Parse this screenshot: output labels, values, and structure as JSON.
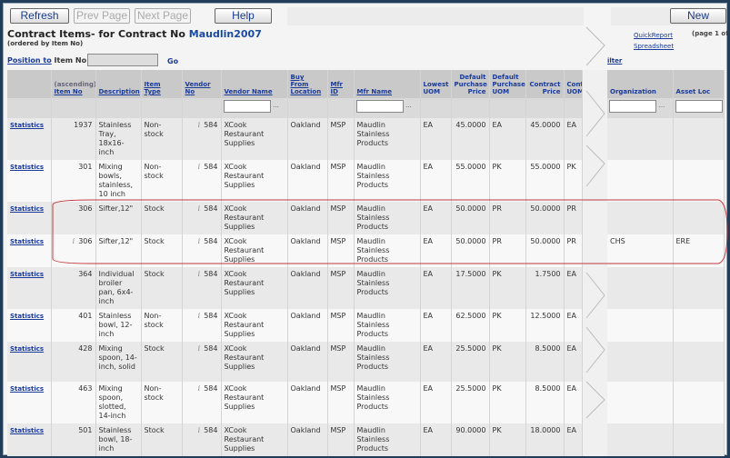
{
  "toolbar": {
    "refresh": "Refresh",
    "prev": "Prev Page",
    "next": "Next Page",
    "help": "Help",
    "new": "New"
  },
  "header": {
    "title": "Contract Items- for Contract No",
    "contract_no": "Maudlin2007",
    "subtitle": "(ordered by Item No)",
    "quick_report": "QuickReport",
    "spreadsheet": "Spreadsheet",
    "page_info": "(page 1 of",
    "filter_link": "ilter"
  },
  "position": {
    "link": "Position to",
    "label": "Item No",
    "value": "",
    "go": "Go"
  },
  "columns": {
    "sort_note": "(ascending)",
    "item_no": "Item No",
    "description": "Description",
    "item_type": "Item Type",
    "vendor_no": "Vendor No",
    "vendor_name": "Vendor Name",
    "buy_from": "Buy From Location",
    "mfr_id": "Mfr ID",
    "mfr_name": "Mfr Name",
    "lowest_uom": "Lowest UOM",
    "def_price": "Default Purchase Price",
    "def_uom": "Default Purchase UOM",
    "contract_price": "Contract Price",
    "cont_uom": "Cont UOM",
    "organization": "Organization",
    "asset_loc": "Asset Loc"
  },
  "filter_button": "...",
  "rows": [
    {
      "link": "Statistics",
      "item_no": "1937",
      "info": false,
      "description": "Stainless Tray, 18x16-inch",
      "item_type": "Non-stock",
      "vendor_no": "584",
      "vendor_name": "XCook Restaurant Supplies",
      "buy_from": "Oakland",
      "mfr_id": "MSP",
      "mfr_name": "Maudlin Stainless Products",
      "lowest_uom": "EA",
      "def_price": "45.0000",
      "def_uom": "EA",
      "contract_price": "45.0000",
      "cont_uom": "EA",
      "organization": "",
      "asset_loc": ""
    },
    {
      "link": "Statistics",
      "item_no": "301",
      "info": false,
      "description": "Mixing bowls, stainless, 10 inch",
      "item_type": "Non-stock",
      "vendor_no": "584",
      "vendor_name": "XCook Restaurant Supplies",
      "buy_from": "Oakland",
      "mfr_id": "MSP",
      "mfr_name": "Maudlin Stainless Products",
      "lowest_uom": "EA",
      "def_price": "55.0000",
      "def_uom": "PK",
      "contract_price": "55.0000",
      "cont_uom": "PK",
      "organization": "",
      "asset_loc": ""
    },
    {
      "link": "Statistics",
      "item_no": "306",
      "info": false,
      "description": "Sifter,12\"",
      "item_type": "Stock",
      "vendor_no": "584",
      "vendor_name": "XCook Restaurant Supplies",
      "buy_from": "Oakland",
      "mfr_id": "MSP",
      "mfr_name": "Maudlin Stainless Products",
      "lowest_uom": "EA",
      "def_price": "50.0000",
      "def_uom": "PR",
      "contract_price": "50.0000",
      "cont_uom": "PR",
      "organization": "",
      "asset_loc": ""
    },
    {
      "link": "Statistics",
      "item_no": "306",
      "info": true,
      "description": "Sifter,12\"",
      "item_type": "Stock",
      "vendor_no": "584",
      "vendor_name": "XCook Restaurant Supplies",
      "buy_from": "Oakland",
      "mfr_id": "MSP",
      "mfr_name": "Maudlin Stainless Products",
      "lowest_uom": "EA",
      "def_price": "50.0000",
      "def_uom": "PR",
      "contract_price": "50.0000",
      "cont_uom": "PR",
      "organization": "CHS",
      "asset_loc": "ERE"
    },
    {
      "link": "Statistics",
      "item_no": "364",
      "info": false,
      "description": "Individual broiler pan, 6x4-inch",
      "item_type": "Stock",
      "vendor_no": "584",
      "vendor_name": "XCook Restaurant Supplies",
      "buy_from": "Oakland",
      "mfr_id": "MSP",
      "mfr_name": "Maudlin Stainless Products",
      "lowest_uom": "EA",
      "def_price": "17.5000",
      "def_uom": "PK",
      "contract_price": "1.7500",
      "cont_uom": "EA",
      "organization": "",
      "asset_loc": ""
    },
    {
      "link": "Statistics",
      "item_no": "401",
      "info": false,
      "description": "Stainless bowl, 12-inch",
      "item_type": "Non-stock",
      "vendor_no": "584",
      "vendor_name": "XCook Restaurant Supplies",
      "buy_from": "Oakland",
      "mfr_id": "MSP",
      "mfr_name": "Maudlin Stainless Products",
      "lowest_uom": "EA",
      "def_price": "62.5000",
      "def_uom": "PK",
      "contract_price": "12.5000",
      "cont_uom": "EA",
      "organization": "",
      "asset_loc": ""
    },
    {
      "link": "Statistics",
      "item_no": "428",
      "info": false,
      "description": "Mixing spoon, 14-inch, solid",
      "item_type": "Stock",
      "vendor_no": "584",
      "vendor_name": "XCook Restaurant Supplies",
      "buy_from": "Oakland",
      "mfr_id": "MSP",
      "mfr_name": "Maudlin Stainless Products",
      "lowest_uom": "EA",
      "def_price": "25.5000",
      "def_uom": "PK",
      "contract_price": "8.5000",
      "cont_uom": "EA",
      "organization": "",
      "asset_loc": ""
    },
    {
      "link": "Statistics",
      "item_no": "463",
      "info": false,
      "description": "Mixing spoon, slotted, 14-inch",
      "item_type": "Non-stock",
      "vendor_no": "584",
      "vendor_name": "XCook Restaurant Supplies",
      "buy_from": "Oakland",
      "mfr_id": "MSP",
      "mfr_name": "Maudlin Stainless Products",
      "lowest_uom": "EA",
      "def_price": "25.5000",
      "def_uom": "PK",
      "contract_price": "8.5000",
      "cont_uom": "EA",
      "organization": "",
      "asset_loc": ""
    },
    {
      "link": "Statistics",
      "item_no": "501",
      "info": false,
      "description": "Stainless bowl, 18-inch",
      "item_type": "Stock",
      "vendor_no": "584",
      "vendor_name": "XCook Restaurant Supplies",
      "buy_from": "Oakland",
      "mfr_id": "MSP",
      "mfr_name": "Maudlin Stainless Products",
      "lowest_uom": "EA",
      "def_price": "90.0000",
      "def_uom": "PK",
      "contract_price": "18.0000",
      "cont_uom": "EA",
      "organization": "",
      "asset_loc": ""
    }
  ],
  "colors": {
    "highlight_oval": "#c0393b",
    "link": "#1a3a9a",
    "frame": "#213d5a"
  }
}
